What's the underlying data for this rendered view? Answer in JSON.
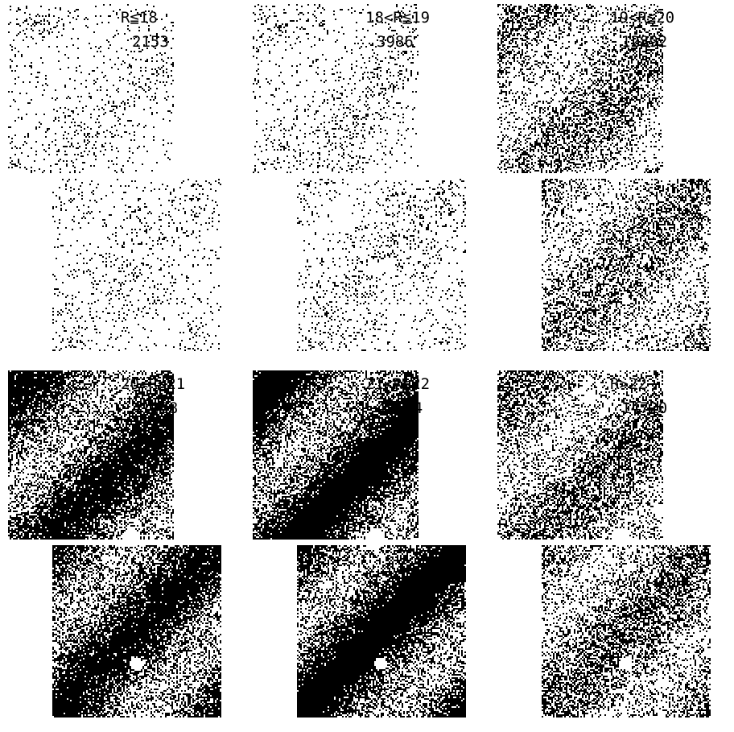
{
  "panels": [
    {
      "label": "R≦18",
      "count": 2153
    },
    {
      "label": "18<R≦19",
      "count": 3986
    },
    {
      "label": "19<R≦20",
      "count": 12892
    },
    {
      "label": "20<R≦21",
      "count": 41938
    },
    {
      "label": "21<R≦22",
      "count": 43614
    },
    {
      "label": "R>22",
      "count": 14720
    }
  ]
}
